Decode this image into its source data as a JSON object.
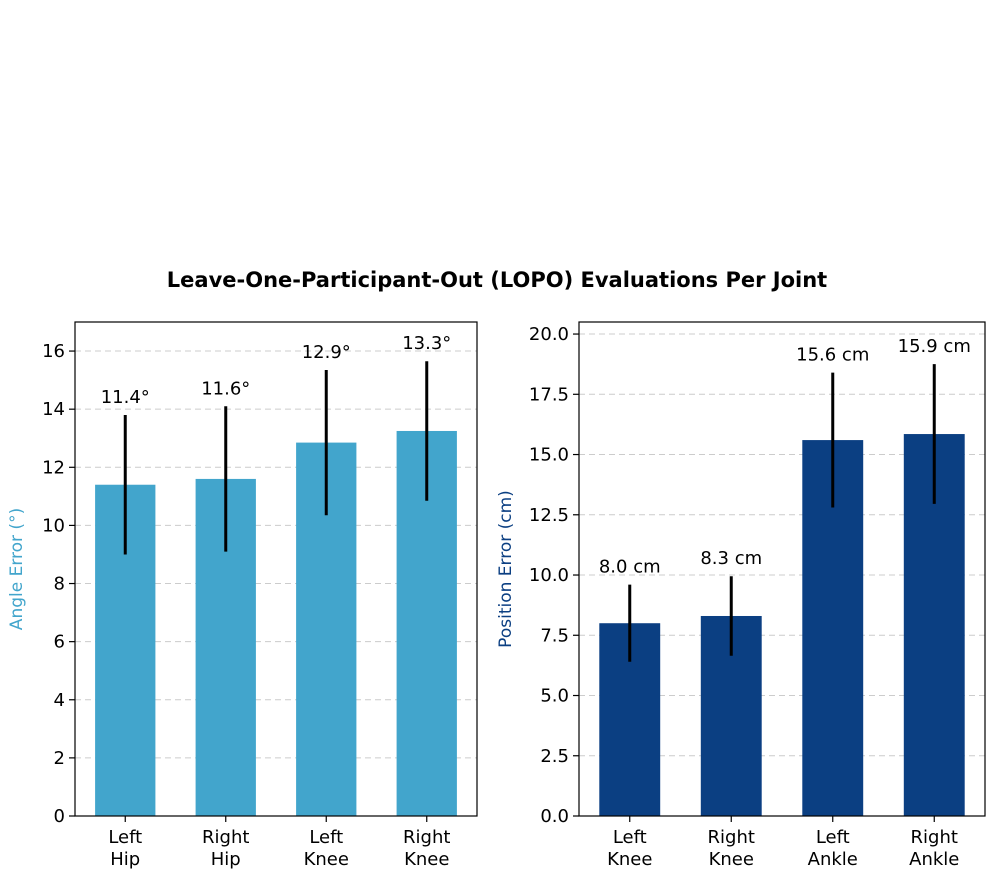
{
  "title": "Leave-One-Participant-Out (LOPO) Evaluations Per Joint",
  "chart_data": [
    {
      "type": "bar",
      "title": "",
      "xlabel": "",
      "ylabel": "Angle Error (°)",
      "ylabel_color": "#42a5cc",
      "bar_color": "#42a5cc",
      "ylim": [
        0,
        17
      ],
      "yticks": [
        0,
        2,
        4,
        6,
        8,
        10,
        12,
        14,
        16
      ],
      "ytick_labels": [
        "0",
        "2",
        "4",
        "6",
        "8",
        "10",
        "12",
        "14",
        "16"
      ],
      "grid": true,
      "categories": [
        [
          "Left",
          "Hip"
        ],
        [
          "Right",
          "Hip"
        ],
        [
          "Left",
          "Knee"
        ],
        [
          "Right",
          "Knee"
        ]
      ],
      "values": [
        11.4,
        11.6,
        12.85,
        13.25
      ],
      "errors": [
        2.4,
        2.5,
        2.5,
        2.4
      ],
      "data_labels": [
        "11.4°",
        "11.6°",
        "12.9°",
        "13.3°"
      ]
    },
    {
      "type": "bar",
      "title": "",
      "xlabel": "",
      "ylabel": "Position Error (cm)",
      "ylabel_color": "#0b3f82",
      "bar_color": "#0b3f82",
      "ylim": [
        0,
        20.5
      ],
      "yticks": [
        0,
        2.5,
        5,
        7.5,
        10,
        12.5,
        15,
        17.5,
        20
      ],
      "ytick_labels": [
        "0.0",
        "2.5",
        "5.0",
        "7.5",
        "10.0",
        "12.5",
        "15.0",
        "17.5",
        "20.0"
      ],
      "grid": true,
      "categories": [
        [
          "Left",
          "Knee"
        ],
        [
          "Right",
          "Knee"
        ],
        [
          "Left",
          "Ankle"
        ],
        [
          "Right",
          "Ankle"
        ]
      ],
      "values": [
        8.0,
        8.3,
        15.6,
        15.85
      ],
      "errors": [
        1.6,
        1.65,
        2.8,
        2.9
      ],
      "data_labels": [
        "8.0 cm",
        "8.3 cm",
        "15.6 cm",
        "15.9 cm"
      ]
    }
  ]
}
